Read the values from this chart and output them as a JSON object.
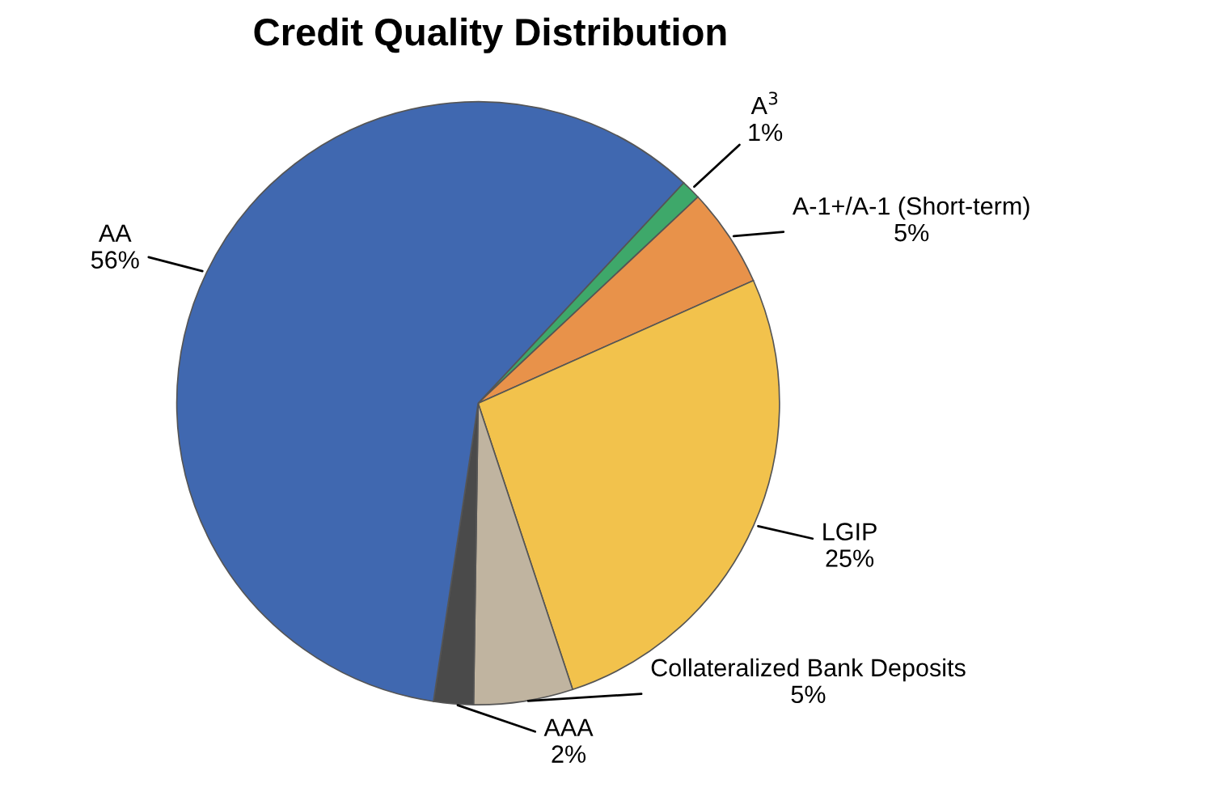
{
  "chart_data": {
    "type": "pie",
    "title": "Credit Quality Distribution",
    "categories": [
      "A$^{3}$",
      "A-1+/A-1 (Short-term)",
      "LGIP",
      "Collateralized Bank Deposits",
      "AAA",
      "AA"
    ],
    "values": [
      1,
      5,
      25,
      5,
      2,
      56
    ],
    "value_labels": [
      "1%",
      "5%",
      "25%",
      "5%",
      "2%",
      "56%"
    ],
    "colors": [
      "#3ea86a",
      "#e8924a",
      "#f2c24c",
      "#c0b4a0",
      "#4a4a4a",
      "#4068b0"
    ]
  }
}
